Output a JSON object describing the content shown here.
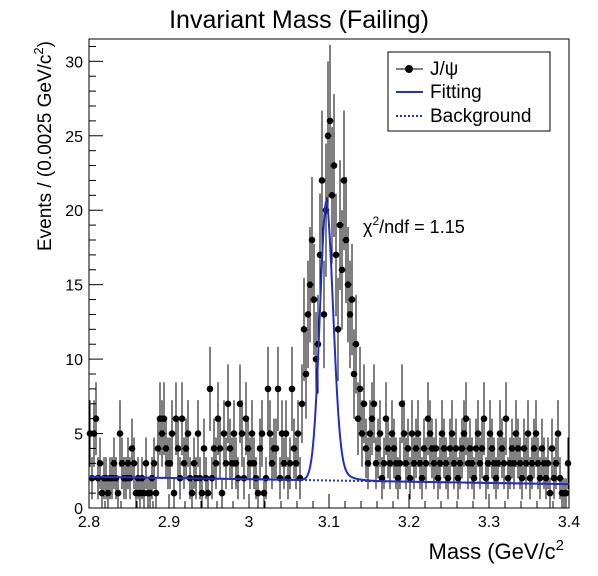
{
  "chart_data": {
    "type": "scatter",
    "title": "Invariant Mass (Failing)",
    "xlabel": "Mass (GeV/c",
    "xlabel_sup": "2",
    "ylabel": "Events / (0.0025 GeV/c",
    "ylabel_sup": "2",
    "ylabel_close": ")",
    "xlim": [
      2.8,
      3.4
    ],
    "ylim": [
      0,
      31.5
    ],
    "x_ticks": [
      "2.8",
      "2.9",
      "3",
      "3.1",
      "3.2",
      "3.3",
      "3.4"
    ],
    "y_ticks": [
      "0",
      "5",
      "10",
      "15",
      "20",
      "25",
      "30"
    ],
    "grid": false,
    "legend_position": "top-right",
    "legend": [
      "J/ψ",
      "Fitting",
      "Background"
    ],
    "annotation": {
      "prefix": "χ",
      "sup": "2",
      "suffix": "/ndf = 1.15"
    },
    "colors": {
      "fit": "#1f2fc8",
      "points": "#000000"
    },
    "series": [
      {
        "name": "J/ψ",
        "style": "points-with-errors",
        "x": [
          2.80125,
          2.80375,
          2.80625,
          2.80875,
          2.81125,
          2.81375,
          2.81625,
          2.81875,
          2.82125,
          2.82375,
          2.82625,
          2.82875,
          2.83125,
          2.83375,
          2.83625,
          2.83875,
          2.84125,
          2.84375,
          2.84625,
          2.84875,
          2.85125,
          2.85375,
          2.85625,
          2.85875,
          2.86125,
          2.86375,
          2.86625,
          2.86875,
          2.87125,
          2.87375,
          2.87625,
          2.87875,
          2.88125,
          2.88375,
          2.88625,
          2.88875,
          2.89125,
          2.89375,
          2.89625,
          2.89875,
          2.90125,
          2.90375,
          2.90625,
          2.90875,
          2.91125,
          2.91375,
          2.91625,
          2.91875,
          2.92125,
          2.92375,
          2.92625,
          2.92875,
          2.93125,
          2.93375,
          2.93625,
          2.93875,
          2.94125,
          2.94375,
          2.94625,
          2.94875,
          2.95125,
          2.95375,
          2.95625,
          2.95875,
          2.96125,
          2.96375,
          2.96625,
          2.96875,
          2.97125,
          2.97375,
          2.97625,
          2.97875,
          2.98125,
          2.98375,
          2.98625,
          2.98875,
          2.99125,
          2.99375,
          2.99625,
          2.99875,
          3.00125,
          3.00375,
          3.00625,
          3.00875,
          3.01125,
          3.01375,
          3.01625,
          3.01875,
          3.02125,
          3.02375,
          3.02625,
          3.02875,
          3.03125,
          3.03375,
          3.03625,
          3.03875,
          3.04125,
          3.04375,
          3.04625,
          3.04875,
          3.05125,
          3.05375,
          3.05625,
          3.05875,
          3.06125,
          3.06375,
          3.06625,
          3.06875,
          3.07125,
          3.07375,
          3.07625,
          3.07875,
          3.08125,
          3.08375,
          3.08625,
          3.08875,
          3.09125,
          3.09375,
          3.09625,
          3.09875,
          3.10125,
          3.10375,
          3.10625,
          3.10875,
          3.11125,
          3.11375,
          3.11625,
          3.11875,
          3.12125,
          3.12375,
          3.12625,
          3.12875,
          3.13125,
          3.13375,
          3.13625,
          3.13875,
          3.14125,
          3.14375,
          3.14625,
          3.14875,
          3.15125,
          3.15375,
          3.15625,
          3.15875,
          3.16125,
          3.16375,
          3.16625,
          3.16875,
          3.17125,
          3.17375,
          3.17625,
          3.17875,
          3.18125,
          3.18375,
          3.18625,
          3.18875,
          3.19125,
          3.19375,
          3.19625,
          3.19875,
          3.20125,
          3.20375,
          3.20625,
          3.20875,
          3.21125,
          3.21375,
          3.21625,
          3.21875,
          3.22125,
          3.22375,
          3.22625,
          3.22875,
          3.23125,
          3.23375,
          3.23625,
          3.23875,
          3.24125,
          3.24375,
          3.24625,
          3.24875,
          3.25125,
          3.25375,
          3.25625,
          3.25875,
          3.26125,
          3.26375,
          3.26625,
          3.26875,
          3.27125,
          3.27375,
          3.27625,
          3.27875,
          3.28125,
          3.28375,
          3.28625,
          3.28875,
          3.29125,
          3.29375,
          3.29625,
          3.29875,
          3.30125,
          3.30375,
          3.30625,
          3.30875,
          3.31125,
          3.31375,
          3.31625,
          3.31875,
          3.32125,
          3.32375,
          3.32625,
          3.32875,
          3.33125,
          3.33375,
          3.33625,
          3.33875,
          3.34125,
          3.34375,
          3.34625,
          3.34875,
          3.35125,
          3.35375,
          3.35625,
          3.35875,
          3.36125,
          3.36375,
          3.36625,
          3.36875,
          3.37125,
          3.37375,
          3.37625,
          3.37875,
          3.38125,
          3.38375,
          3.38625,
          3.38875,
          3.39125,
          3.39375,
          3.39625,
          3.39875
        ],
        "y": [
          5,
          2,
          5,
          6,
          2,
          3,
          1,
          2,
          2,
          1,
          2,
          2,
          3,
          2,
          1,
          5,
          3,
          2,
          2,
          3,
          2,
          4,
          3,
          1,
          2,
          1,
          2,
          1,
          3,
          1,
          1,
          2,
          3,
          1,
          4,
          6,
          5,
          6,
          4,
          3,
          3,
          5,
          1,
          6,
          4,
          2,
          6,
          3,
          4,
          5,
          2,
          1,
          3,
          2,
          5,
          2,
          1,
          4,
          2,
          1,
          8,
          2,
          4,
          3,
          6,
          4,
          1,
          5,
          3,
          7,
          4,
          3,
          5,
          3,
          2,
          7,
          5,
          2,
          6,
          4,
          3,
          5,
          3,
          2,
          1,
          4,
          5,
          1,
          2,
          8,
          5,
          3,
          4,
          4,
          8,
          2,
          5,
          3,
          5,
          2,
          3,
          8,
          4,
          3,
          5,
          2,
          7,
          12,
          9,
          13,
          15,
          18,
          14,
          10,
          11,
          17,
          22,
          13,
          20,
          25,
          26,
          21,
          23,
          17,
          12,
          19,
          16,
          22,
          18,
          15,
          13,
          14,
          9,
          11,
          6,
          8,
          5,
          7,
          4,
          3,
          5,
          6,
          7,
          3,
          4,
          5,
          2,
          3,
          6,
          4,
          3,
          5,
          4,
          3,
          2,
          3,
          7,
          5,
          3,
          4,
          2,
          5,
          3,
          4,
          5,
          3,
          2,
          4,
          3,
          6,
          5,
          4,
          3,
          4,
          2,
          3,
          5,
          4,
          3,
          2,
          4,
          5,
          3,
          4,
          2,
          3,
          4,
          5,
          6,
          3,
          4,
          3,
          2,
          4,
          5,
          3,
          4,
          6,
          2,
          3,
          5,
          4,
          3,
          2,
          3,
          5,
          4,
          3,
          6,
          2,
          3,
          4,
          3,
          5,
          4,
          3,
          2,
          4,
          3,
          5,
          2,
          3,
          4,
          5,
          3,
          2,
          4,
          3,
          2,
          3,
          1,
          4,
          2,
          3,
          5,
          2,
          1,
          1,
          1,
          3
        ]
      },
      {
        "name": "Fitting",
        "style": "solid-line",
        "background_a": 2.1,
        "background_b": 1.2,
        "peak_amplitude": 15.6,
        "peak_mean": 3.097,
        "peak_sigma": 0.0085,
        "tail_amplitude": 3.2,
        "tail_decay": 0.012
      },
      {
        "name": "Background",
        "style": "dotted-line",
        "x": [
          2.8,
          3.4
        ],
        "y": [
          2.1,
          1.6
        ]
      }
    ]
  }
}
